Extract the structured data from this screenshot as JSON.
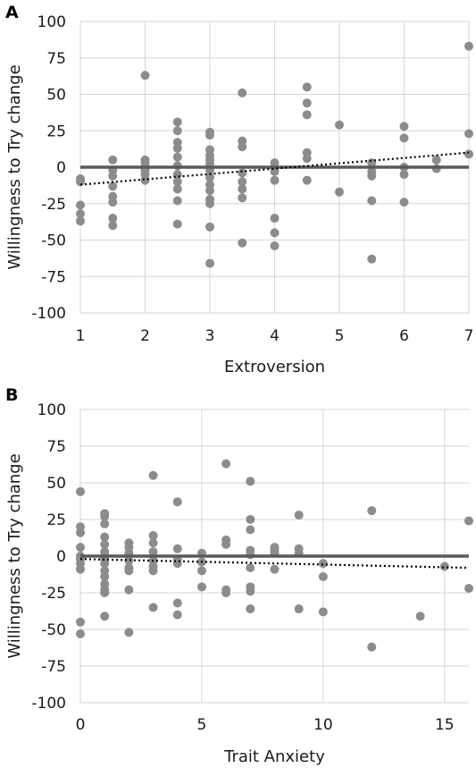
{
  "chart_data": [
    {
      "panel": "A",
      "type": "scatter",
      "xlabel": "Extroversion",
      "ylabel": "Willingness to Try change",
      "xlim": [
        1,
        7
      ],
      "ylim": [
        -100,
        100
      ],
      "xticks": [
        1,
        2,
        3,
        4,
        5,
        6,
        7
      ],
      "yticks": [
        -100,
        -75,
        -50,
        -25,
        0,
        25,
        50,
        75,
        100
      ],
      "grid": true,
      "marker_color": "#8c8c8c",
      "zero_line_color": "#595959",
      "trend_line_color": "#000000",
      "trend": {
        "from": [
          1,
          -12
        ],
        "to": [
          7,
          10
        ]
      },
      "points": [
        [
          1,
          -8
        ],
        [
          1,
          -10
        ],
        [
          1,
          -26
        ],
        [
          1,
          -32
        ],
        [
          1,
          -37
        ],
        [
          1.5,
          5
        ],
        [
          1.5,
          -2
        ],
        [
          1.5,
          -6
        ],
        [
          1.5,
          -13
        ],
        [
          1.5,
          -20
        ],
        [
          1.5,
          -24
        ],
        [
          1.5,
          -35
        ],
        [
          1.5,
          -40
        ],
        [
          2,
          63
        ],
        [
          2,
          5
        ],
        [
          2,
          3
        ],
        [
          2,
          0
        ],
        [
          2,
          -2
        ],
        [
          2,
          -5
        ],
        [
          2,
          -9
        ],
        [
          2.5,
          31
        ],
        [
          2.5,
          25
        ],
        [
          2.5,
          17
        ],
        [
          2.5,
          13
        ],
        [
          2.5,
          7
        ],
        [
          2.5,
          1
        ],
        [
          2.5,
          -5
        ],
        [
          2.5,
          -10
        ],
        [
          2.5,
          -15
        ],
        [
          2.5,
          -23
        ],
        [
          2.5,
          -39
        ],
        [
          3,
          24
        ],
        [
          3,
          22
        ],
        [
          3,
          12
        ],
        [
          3,
          8
        ],
        [
          3,
          5
        ],
        [
          3,
          2
        ],
        [
          3,
          -2
        ],
        [
          3,
          -7
        ],
        [
          3,
          -12
        ],
        [
          3,
          -16
        ],
        [
          3,
          -22
        ],
        [
          3,
          -25
        ],
        [
          3,
          -41
        ],
        [
          3,
          -66
        ],
        [
          3.5,
          51
        ],
        [
          3.5,
          18
        ],
        [
          3.5,
          14
        ],
        [
          3.5,
          -4
        ],
        [
          3.5,
          -10
        ],
        [
          3.5,
          -15
        ],
        [
          3.5,
          -21
        ],
        [
          3.5,
          -52
        ],
        [
          4,
          3
        ],
        [
          4,
          0
        ],
        [
          4,
          -3
        ],
        [
          4,
          -9
        ],
        [
          4,
          -35
        ],
        [
          4,
          -45
        ],
        [
          4,
          -54
        ],
        [
          4.5,
          55
        ],
        [
          4.5,
          44
        ],
        [
          4.5,
          36
        ],
        [
          4.5,
          10
        ],
        [
          4.5,
          6
        ],
        [
          4.5,
          -9
        ],
        [
          5,
          29
        ],
        [
          5,
          -17
        ],
        [
          5.5,
          3
        ],
        [
          5.5,
          -3
        ],
        [
          5.5,
          -6
        ],
        [
          5.5,
          -23
        ],
        [
          5.5,
          -63
        ],
        [
          6,
          28
        ],
        [
          6,
          20
        ],
        [
          6,
          0
        ],
        [
          6,
          -5
        ],
        [
          6,
          -24
        ],
        [
          6.5,
          5
        ],
        [
          6.5,
          -1
        ],
        [
          7,
          83
        ],
        [
          7,
          23
        ],
        [
          7,
          9
        ]
      ]
    },
    {
      "panel": "B",
      "type": "scatter",
      "xlabel": "Trait Anxiety",
      "ylabel": "Willingness to Try change",
      "xlim": [
        0,
        16
      ],
      "ylim": [
        -100,
        100
      ],
      "xticks": [
        0,
        5,
        10,
        15
      ],
      "yticks": [
        -100,
        -75,
        -50,
        -25,
        0,
        25,
        50,
        75,
        100
      ],
      "grid": true,
      "marker_color": "#8c8c8c",
      "zero_line_color": "#595959",
      "trend_line_color": "#000000",
      "trend": {
        "from": [
          0,
          -2
        ],
        "to": [
          16,
          -8
        ]
      },
      "points": [
        [
          0,
          44
        ],
        [
          0,
          20
        ],
        [
          0,
          16
        ],
        [
          0,
          6
        ],
        [
          0,
          0
        ],
        [
          0,
          -2
        ],
        [
          0,
          -5
        ],
        [
          0,
          -9
        ],
        [
          0,
          -45
        ],
        [
          0,
          -53
        ],
        [
          1,
          29
        ],
        [
          1,
          27
        ],
        [
          1,
          22
        ],
        [
          1,
          13
        ],
        [
          1,
          8
        ],
        [
          1,
          3
        ],
        [
          1,
          0
        ],
        [
          1,
          -2
        ],
        [
          1,
          -5
        ],
        [
          1,
          -10
        ],
        [
          1,
          -14
        ],
        [
          1,
          -19
        ],
        [
          1,
          -23
        ],
        [
          1,
          -25
        ],
        [
          1,
          -41
        ],
        [
          2,
          9
        ],
        [
          2,
          6
        ],
        [
          2,
          2
        ],
        [
          2,
          -3
        ],
        [
          2,
          -8
        ],
        [
          2,
          -10
        ],
        [
          2,
          -23
        ],
        [
          2,
          -52
        ],
        [
          3,
          55
        ],
        [
          3,
          14
        ],
        [
          3,
          9
        ],
        [
          3,
          3
        ],
        [
          3,
          -3
        ],
        [
          3,
          -7
        ],
        [
          3,
          -10
        ],
        [
          3,
          -35
        ],
        [
          4,
          37
        ],
        [
          4,
          5
        ],
        [
          4,
          -2
        ],
        [
          4,
          -5
        ],
        [
          4,
          -32
        ],
        [
          4,
          -40
        ],
        [
          5,
          2
        ],
        [
          5,
          -4
        ],
        [
          5,
          -10
        ],
        [
          5,
          -21
        ],
        [
          6,
          63
        ],
        [
          6,
          11
        ],
        [
          6,
          8
        ],
        [
          6,
          -23
        ],
        [
          6,
          -25
        ],
        [
          7,
          51
        ],
        [
          7,
          25
        ],
        [
          7,
          18
        ],
        [
          7,
          4
        ],
        [
          7,
          1
        ],
        [
          7,
          -8
        ],
        [
          7,
          -21
        ],
        [
          7,
          -24
        ],
        [
          7,
          -36
        ],
        [
          8,
          6
        ],
        [
          8,
          4
        ],
        [
          8,
          2
        ],
        [
          8,
          -9
        ],
        [
          9,
          28
        ],
        [
          9,
          5
        ],
        [
          9,
          2
        ],
        [
          9,
          -36
        ],
        [
          10,
          -5
        ],
        [
          10,
          -14
        ],
        [
          10,
          -38
        ],
        [
          12,
          31
        ],
        [
          12,
          -62
        ],
        [
          14,
          -41
        ],
        [
          15,
          -7
        ],
        [
          16,
          24
        ],
        [
          16,
          -22
        ]
      ]
    }
  ]
}
